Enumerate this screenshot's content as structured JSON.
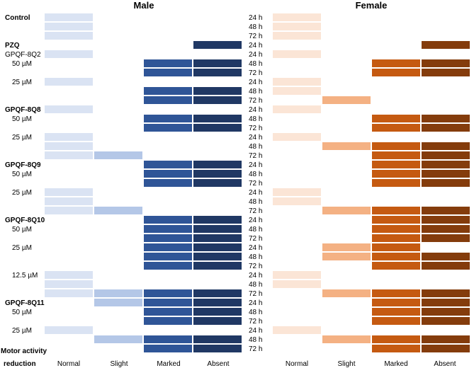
{
  "chart_data": {
    "type": "heatmap",
    "panels": [
      {
        "title": "Male",
        "palette": [
          "#dae3f3",
          "#b4c7e7",
          "#2f5597",
          "#203864"
        ]
      },
      {
        "title": "Female",
        "palette": [
          "#fbe5d6",
          "#f4b183",
          "#c55a11",
          "#843c0c"
        ]
      }
    ],
    "categories": [
      "Normal",
      "Slight",
      "Marked",
      "Absent"
    ],
    "axis_title": [
      "Motor activity",
      "reduction"
    ],
    "row_labels": [
      {
        "row": 0,
        "text": "Control",
        "bold": true
      },
      {
        "row": 3,
        "text": "PZQ",
        "bold": true
      },
      {
        "row": 4,
        "text": "GPQF-8Q2",
        "bold": false
      },
      {
        "row": 5,
        "text": "50 µM",
        "bold": false
      },
      {
        "row": 7,
        "text": "25 µM",
        "bold": false
      },
      {
        "row": 10,
        "text": "GPQF-8Q8",
        "bold": true
      },
      {
        "row": 11,
        "text": "50 µM",
        "bold": false
      },
      {
        "row": 13,
        "text": "25 µM",
        "bold": false
      },
      {
        "row": 16,
        "text": "GPQF-8Q9",
        "bold": true
      },
      {
        "row": 17,
        "text": "50 µM",
        "bold": false
      },
      {
        "row": 19,
        "text": "25 µM",
        "bold": false
      },
      {
        "row": 22,
        "text": "GPQF-8Q10",
        "bold": true
      },
      {
        "row": 23,
        "text": "50 µM",
        "bold": false
      },
      {
        "row": 25,
        "text": "25 µM",
        "bold": false
      },
      {
        "row": 28,
        "text": "12.5 µM",
        "bold": false
      },
      {
        "row": 31,
        "text": "GPQF-8Q11",
        "bold": true
      },
      {
        "row": 32,
        "text": "50 µM",
        "bold": false
      },
      {
        "row": 34,
        "text": "25 µM",
        "bold": false
      }
    ],
    "time_labels": [
      "24 h",
      "48 h",
      "72 h",
      "24 h",
      "24 h",
      "48 h",
      "72 h",
      "24 h",
      "48 h",
      "72 h",
      "24 h",
      "48 h",
      "72 h",
      "24 h",
      "48 h",
      "72 h",
      "24 h",
      "48 h",
      "72 h",
      "24 h",
      "48 h",
      "72 h",
      "24 h",
      "48 h",
      "72 h",
      "24 h",
      "48 h",
      "72 h",
      "24 h",
      "48 h",
      "72 h",
      "24 h",
      "48 h",
      "72 h",
      "24 h",
      "48 h",
      "72 h"
    ],
    "male_values": [
      [
        0
      ],
      [
        0
      ],
      [
        0
      ],
      [
        3
      ],
      [
        0
      ],
      [
        2,
        3
      ],
      [
        2,
        3
      ],
      [
        0
      ],
      [
        2,
        3
      ],
      [
        2,
        3
      ],
      [
        0
      ],
      [
        2,
        3
      ],
      [
        2,
        3
      ],
      [
        0
      ],
      [
        0
      ],
      [
        0,
        1
      ],
      [
        2,
        3
      ],
      [
        2,
        3
      ],
      [
        2,
        3
      ],
      [
        0
      ],
      [
        0
      ],
      [
        0,
        1
      ],
      [
        2,
        3
      ],
      [
        2,
        3
      ],
      [
        2,
        3
      ],
      [
        2,
        3
      ],
      [
        2,
        3
      ],
      [
        2,
        3
      ],
      [
        0
      ],
      [
        0
      ],
      [
        0,
        1,
        2,
        3
      ],
      [
        1,
        2,
        3
      ],
      [
        2,
        3
      ],
      [
        2,
        3
      ],
      [
        0
      ],
      [
        1,
        2,
        3
      ],
      [
        2,
        3
      ]
    ],
    "female_values": [
      [
        0
      ],
      [
        0
      ],
      [
        0
      ],
      [
        3
      ],
      [
        0
      ],
      [
        2,
        3
      ],
      [
        2,
        3
      ],
      [
        0
      ],
      [
        0
      ],
      [
        1
      ],
      [
        0
      ],
      [
        2,
        3
      ],
      [
        2,
        3
      ],
      [
        0
      ],
      [
        1,
        2,
        3
      ],
      [
        2,
        3
      ],
      [
        2,
        3
      ],
      [
        2,
        3
      ],
      [
        2,
        3
      ],
      [
        0
      ],
      [
        0
      ],
      [
        1,
        2,
        3
      ],
      [
        2,
        3
      ],
      [
        2,
        3
      ],
      [
        2,
        3
      ],
      [
        1,
        2
      ],
      [
        1,
        2,
        3
      ],
      [
        2,
        3
      ],
      [
        0
      ],
      [
        0
      ],
      [
        1,
        2,
        3
      ],
      [
        2,
        3
      ],
      [
        2,
        3
      ],
      [
        2,
        3
      ],
      [
        0
      ],
      [
        1,
        2,
        3
      ],
      [
        2,
        3
      ]
    ]
  }
}
